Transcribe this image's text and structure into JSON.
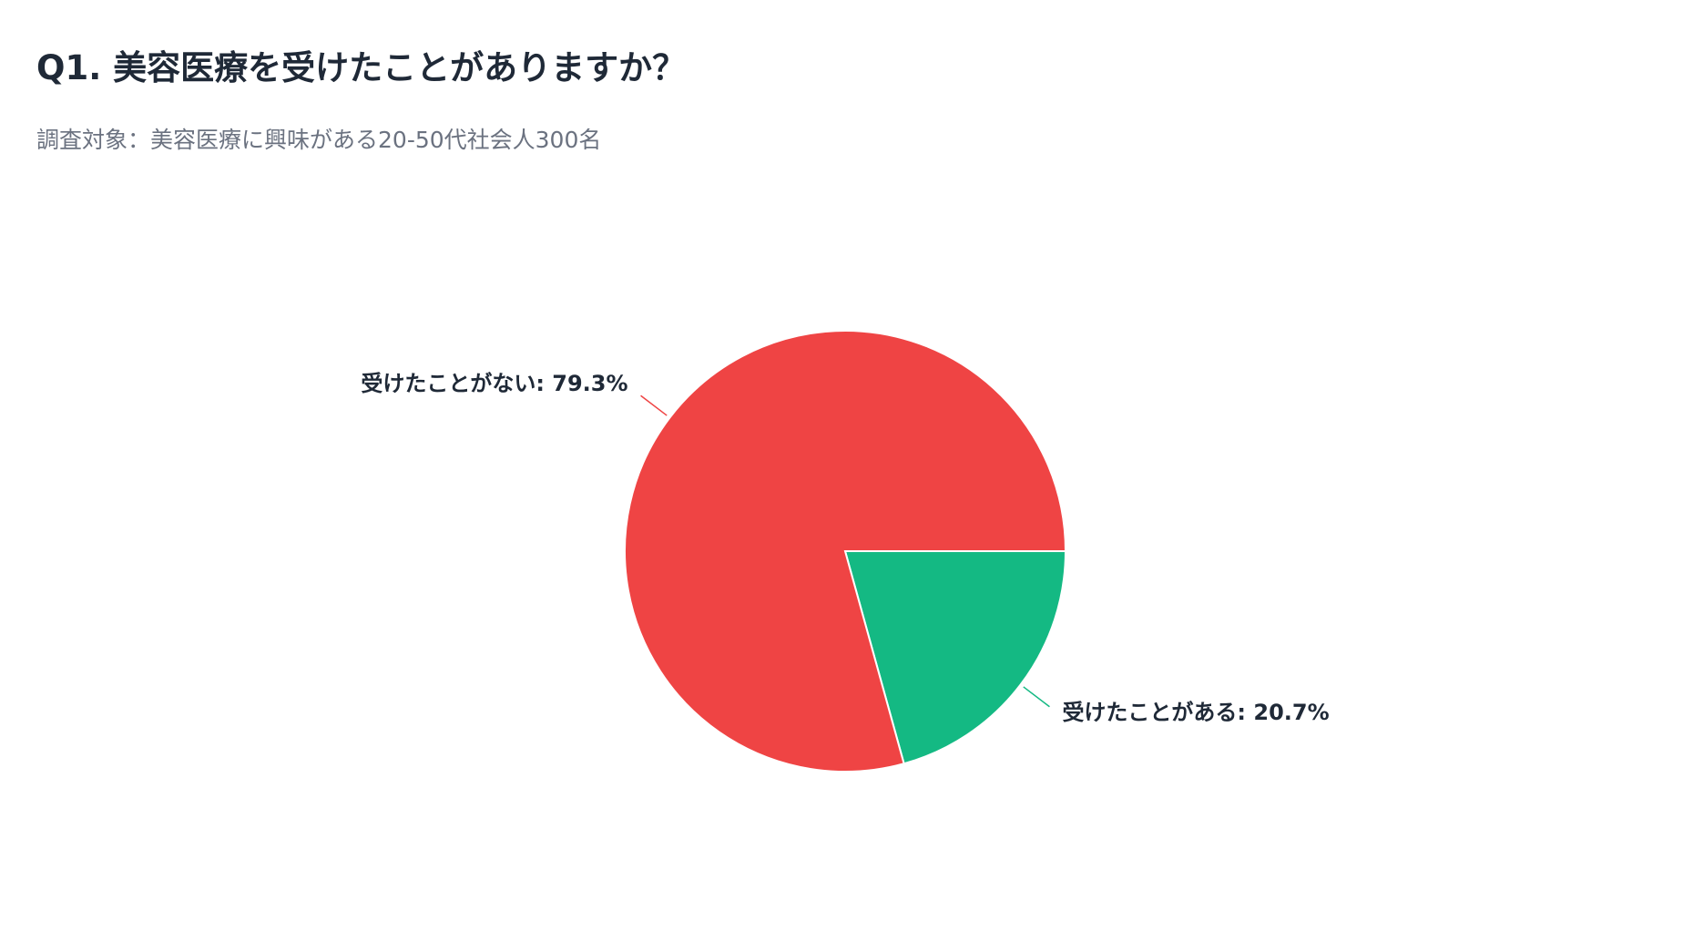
{
  "chart_data": {
    "type": "pie",
    "title": "Q1. 美容医療を受けたことがありますか？",
    "subtitle": "調査対象：美容医療に興味がある20-50代社会人300名",
    "slices": [
      {
        "name": "受けたことがある",
        "value": 20.7,
        "label": "受けたことがある: 20.7%",
        "color": "#14b983"
      },
      {
        "name": "受けたことがない",
        "value": 79.3,
        "label": "受けたことがない: 79.3%",
        "color": "#ef4444"
      }
    ],
    "start_angle_deg": 0,
    "direction": "clockwise",
    "legend": "none"
  }
}
